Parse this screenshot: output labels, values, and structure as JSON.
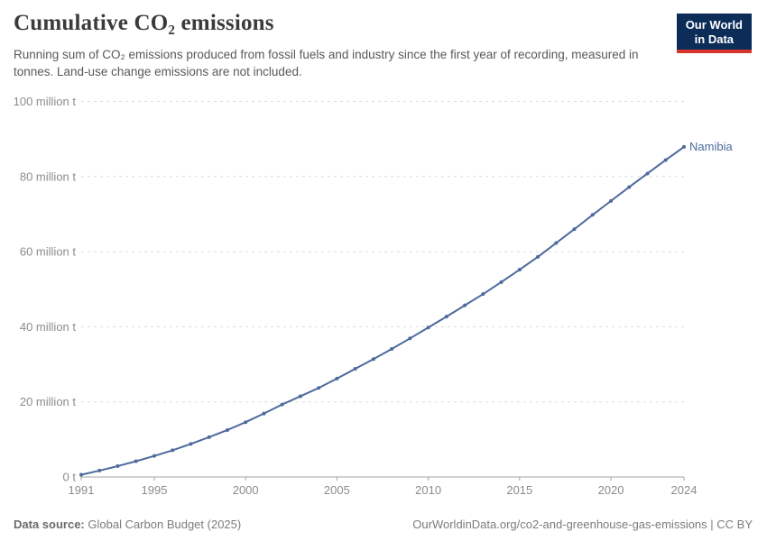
{
  "header": {
    "title": "Cumulative CO₂ emissions",
    "subtitle": "Running sum of CO₂ emissions produced from fossil fuels and industry since the first year of recording, measured in tonnes. Land-use change emissions are not included.",
    "logo": {
      "line1": "Our World",
      "line2": "in Data",
      "bg_color": "#0d2d59",
      "accent_color": "#d8352c"
    }
  },
  "footer": {
    "source_label": "Data source:",
    "source_value": "Global Carbon Budget (2025)",
    "attribution": "OurWorldinData.org/co2-and-greenhouse-gas-emissions | CC BY"
  },
  "chart_data": {
    "type": "line",
    "title": "Cumulative CO₂ emissions",
    "unit": "tonnes",
    "entity_label": "Namibia",
    "x_min": 1991,
    "x_max": 2024,
    "y_max_million": 100,
    "ylim_tonnes": [
      0,
      100000000
    ],
    "x": [
      1991,
      1992,
      1993,
      1994,
      1995,
      1996,
      1997,
      1998,
      1999,
      2000,
      2001,
      2002,
      2003,
      2004,
      2005,
      2006,
      2007,
      2008,
      2009,
      2010,
      2011,
      2012,
      2013,
      2014,
      2015,
      2016,
      2017,
      2018,
      2019,
      2020,
      2021,
      2022,
      2023,
      2024
    ],
    "series": [
      {
        "name": "Namibia",
        "color": "#4C6A9C",
        "values_million_t": [
          0.6,
          1.7,
          2.9,
          4.2,
          5.6,
          7.1,
          8.8,
          10.6,
          12.5,
          14.6,
          16.9,
          19.3,
          21.5,
          23.7,
          26.2,
          28.8,
          31.4,
          34.1,
          36.9,
          39.8,
          42.7,
          45.7,
          48.7,
          51.9,
          55.2,
          58.6,
          62.3,
          66.0,
          69.8,
          73.5,
          77.2,
          80.8,
          84.4,
          87.9
        ]
      }
    ],
    "x_ticks": [
      1991,
      1995,
      2000,
      2005,
      2010,
      2015,
      2020,
      2024
    ],
    "y_ticks": [
      {
        "value": 0,
        "label": "0 t"
      },
      {
        "value": 20,
        "label": "20 million t"
      },
      {
        "value": 40,
        "label": "40 million t"
      },
      {
        "value": 60,
        "label": "60 million t"
      },
      {
        "value": 80,
        "label": "80 million t"
      },
      {
        "value": 100,
        "label": "100 million t"
      }
    ],
    "grid": "horizontal-dashed",
    "legend_position": "end-of-line",
    "colors": {
      "line": "#4C6A9C",
      "grid": "#dddddd",
      "axis": "#a3a3a3",
      "tick_label": "#8c8c8c"
    }
  }
}
